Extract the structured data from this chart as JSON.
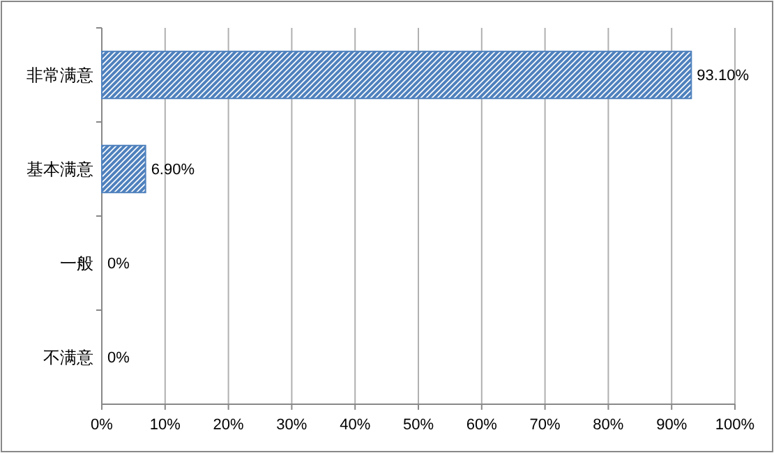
{
  "chart_data": {
    "type": "bar",
    "orientation": "horizontal",
    "categories": [
      "非常满意",
      "基本满意",
      "一般",
      "不满意"
    ],
    "values": [
      93.1,
      6.9,
      0,
      0
    ],
    "color": "#4f81bd",
    "value_labels": [
      "93.10%",
      "6.90%",
      "0%",
      "0%"
    ],
    "xlim": [
      0,
      100
    ],
    "xticks": [
      {
        "value": 0,
        "label": "0%"
      },
      {
        "value": 10,
        "label": "10%"
      },
      {
        "value": 20,
        "label": "20%"
      },
      {
        "value": 30,
        "label": "30%"
      },
      {
        "value": 40,
        "label": "40%"
      },
      {
        "value": 50,
        "label": "50%"
      },
      {
        "value": 60,
        "label": "60%"
      },
      {
        "value": 70,
        "label": "70%"
      },
      {
        "value": 80,
        "label": "80%"
      },
      {
        "value": 90,
        "label": "90%"
      },
      {
        "value": 100,
        "label": "100%"
      }
    ],
    "grid": "x"
  }
}
